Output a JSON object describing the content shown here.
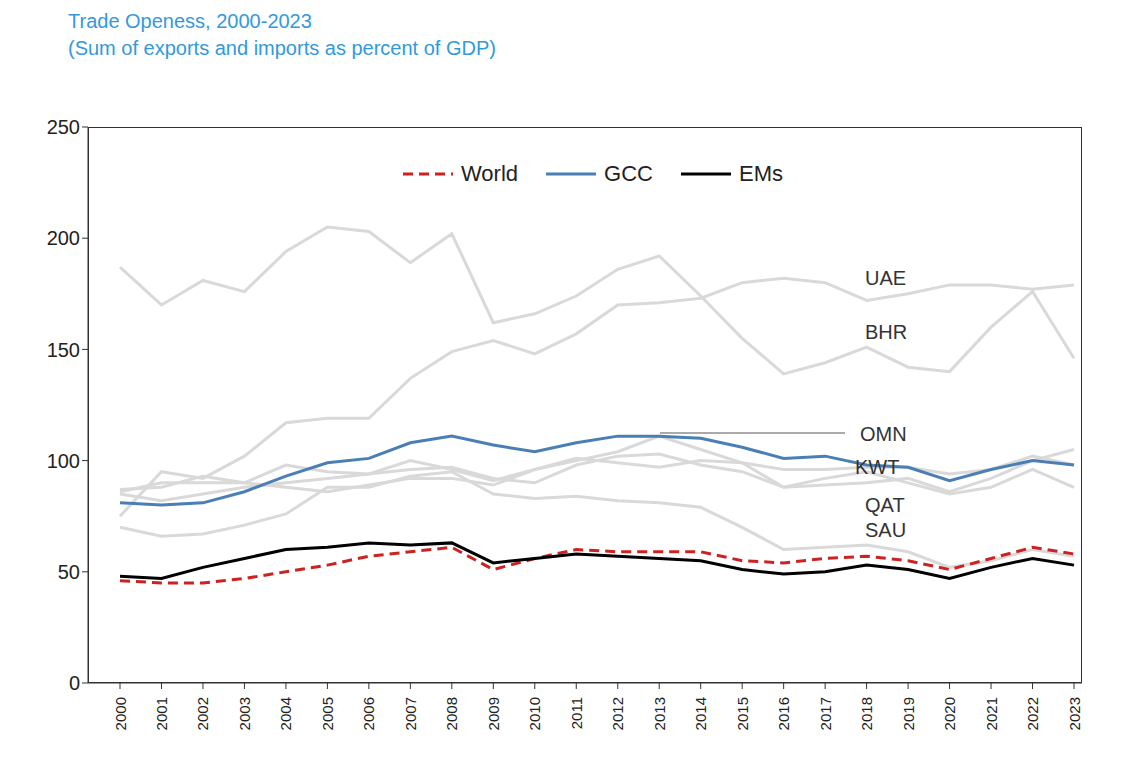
{
  "chart_data": {
    "type": "line",
    "title": "Trade Openess, 2000-2023",
    "subtitle": "(Sum of exports and imports as percent of GDP)",
    "categories": [
      "2000",
      "2001",
      "2002",
      "2003",
      "2004",
      "2005",
      "2006",
      "2007",
      "2008",
      "2009",
      "2010",
      "2011",
      "2012",
      "2013",
      "2014",
      "2015",
      "2016",
      "2017",
      "2018",
      "2019",
      "2020",
      "2021",
      "2022",
      "2023"
    ],
    "ylim": [
      0,
      250
    ],
    "yticks": [
      0,
      50,
      100,
      150,
      200,
      250
    ],
    "grid": false,
    "legend": "top",
    "series": [
      {
        "name": "World",
        "color": "#cc2222",
        "line_style": "dashed",
        "values": [
          46,
          45,
          45,
          47,
          50,
          53,
          57,
          59,
          61,
          51,
          56,
          60,
          59,
          59,
          59,
          55,
          54,
          56,
          57,
          55,
          51,
          56,
          61,
          58
        ]
      },
      {
        "name": "GCC",
        "color": "#4a7fb5",
        "line_style": "solid",
        "values": [
          81,
          80,
          81,
          86,
          93,
          99,
          101,
          108,
          111,
          107,
          104,
          108,
          111,
          111,
          110,
          106,
          101,
          102,
          98,
          97,
          91,
          96,
          100,
          98
        ]
      },
      {
        "name": "EMs",
        "color": "#000000",
        "line_style": "solid",
        "values": [
          48,
          47,
          52,
          56,
          60,
          61,
          63,
          62,
          63,
          54,
          56,
          58,
          57,
          56,
          55,
          51,
          49,
          50,
          53,
          51,
          47,
          52,
          56,
          53
        ]
      }
    ],
    "countries": [
      {
        "name": "UAE",
        "color": "#d9d9d9",
        "values": [
          75,
          95,
          92,
          102,
          117,
          119,
          119,
          137,
          149,
          154,
          148,
          157,
          170,
          171,
          173,
          180,
          182,
          180,
          172,
          175,
          179,
          179,
          177,
          179
        ]
      },
      {
        "name": "BHR",
        "color": "#d9d9d9",
        "values": [
          187,
          170,
          181,
          176,
          194,
          205,
          203,
          189,
          202,
          162,
          166,
          174,
          186,
          192,
          174,
          155,
          139,
          144,
          151,
          142,
          140,
          160,
          176,
          146
        ]
      },
      {
        "name": "OMN",
        "color": "#d9d9d9",
        "values": [
          87,
          88,
          93,
          90,
          98,
          95,
          94,
          100,
          96,
          91,
          96,
          100,
          104,
          111,
          105,
          99,
          88,
          89,
          90,
          92,
          86,
          92,
          100,
          105
        ]
      },
      {
        "name": "KWT",
        "color": "#d9d9d9",
        "values": [
          85,
          82,
          85,
          88,
          90,
          92,
          94,
          96,
          97,
          92,
          90,
          98,
          102,
          103,
          98,
          95,
          88,
          92,
          95,
          90,
          85,
          88,
          96,
          88
        ]
      },
      {
        "name": "QAT",
        "color": "#d9d9d9",
        "values": [
          86,
          90,
          90,
          90,
          88,
          86,
          89,
          92,
          92,
          89,
          96,
          101,
          99,
          97,
          100,
          99,
          96,
          96,
          97,
          97,
          94,
          96,
          102,
          98
        ]
      },
      {
        "name": "SAU",
        "color": "#d9d9d9",
        "values": [
          70,
          66,
          67,
          71,
          76,
          88,
          88,
          93,
          95,
          85,
          83,
          84,
          82,
          81,
          79,
          70,
          60,
          61,
          62,
          59,
          52,
          55,
          60,
          57
        ]
      }
    ]
  }
}
